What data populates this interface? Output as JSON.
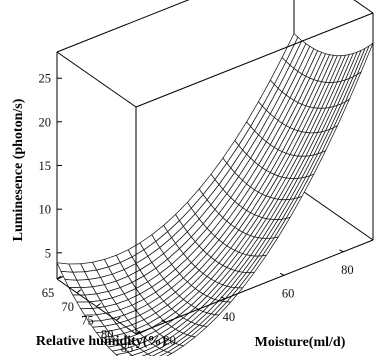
{
  "chart_data": {
    "type": "surface3d",
    "title": "",
    "xlabel": "Relative humidity(%)",
    "ylabel": "Moisture(ml/d)",
    "zlabel": "Luminesence (photon/s)",
    "x_ticks": [
      65,
      70,
      75,
      80,
      85
    ],
    "y_ticks": [
      20,
      40,
      60,
      80
    ],
    "z_ticks": [
      5,
      10,
      15,
      20,
      25
    ],
    "xlim": [
      65,
      85
    ],
    "ylim": [
      10,
      90
    ],
    "zlim": [
      2,
      28
    ],
    "grid": false,
    "surface_grid": {
      "x_steps": 20,
      "y_steps": 20
    },
    "surface_samples": [
      {
        "x": 65,
        "y": 10,
        "z": 7.5
      },
      {
        "x": 85,
        "y": 10,
        "z": 6.0
      },
      {
        "x": 65,
        "y": 90,
        "z": 17.0
      },
      {
        "x": 85,
        "y": 90,
        "z": 26.0
      },
      {
        "x": 78,
        "y": 44,
        "z": 2.2
      },
      {
        "x": 77,
        "y": 55,
        "z": 3.0
      }
    ],
    "colors": {
      "mesh": "#1a1a1a",
      "surface": "#ffffff",
      "box": "#000000"
    }
  }
}
